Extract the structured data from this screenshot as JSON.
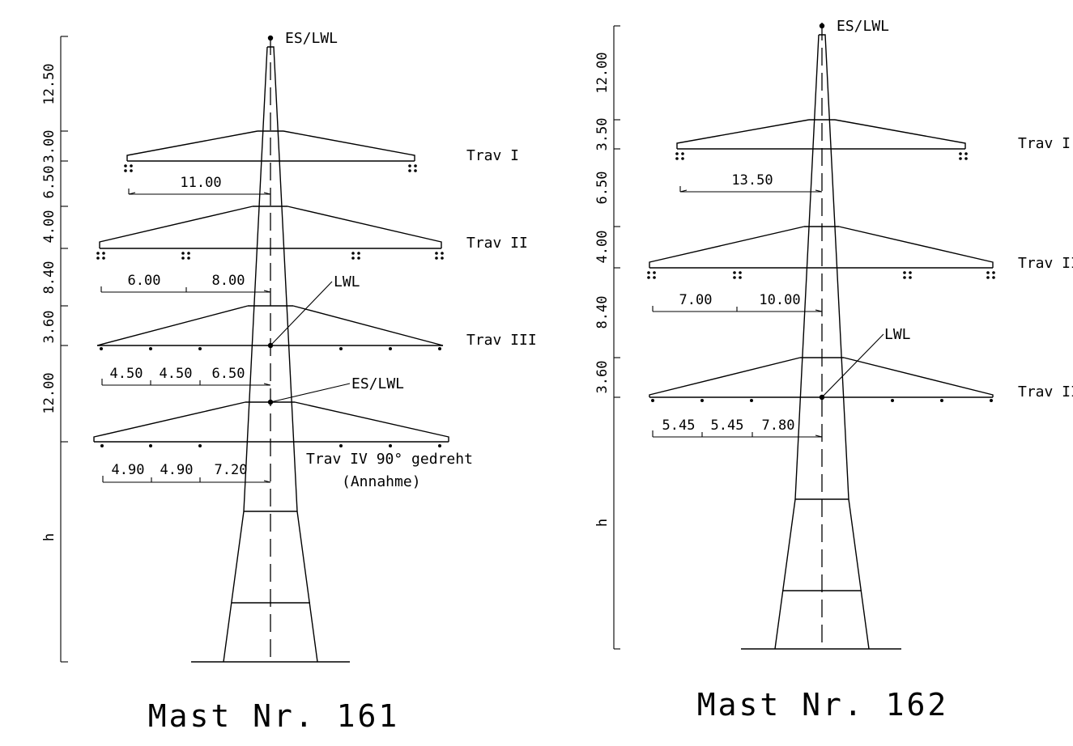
{
  "masts": [
    {
      "title": "Mast Nr. 161",
      "top_label": "ES/LWL",
      "height_dims": [
        "12.50",
        "3.00",
        "6.50",
        "4.00",
        "8.40",
        "3.60",
        "12.00",
        "h"
      ],
      "crossarms": [
        {
          "label": "Trav I"
        },
        {
          "label": "Trav II"
        },
        {
          "label": "Trav III"
        },
        {
          "label": "Trav IV 90° gedreht",
          "note": "(Annahme)"
        }
      ],
      "span_dims": {
        "trav1": [
          "11.00"
        ],
        "trav2": [
          "6.00",
          "8.00"
        ],
        "trav3": [
          "4.50",
          "4.50",
          "6.50"
        ],
        "trav4": [
          "4.90",
          "4.90",
          "7.20"
        ]
      },
      "callouts": [
        "LWL",
        "ES/LWL"
      ]
    },
    {
      "title": "Mast Nr. 162",
      "top_label": "ES/LWL",
      "height_dims": [
        "12.00",
        "3.50",
        "6.50",
        "4.00",
        "8.40",
        "3.60",
        "h"
      ],
      "crossarms": [
        {
          "label": "Trav I"
        },
        {
          "label": "Trav II"
        },
        {
          "label": "Trav III"
        }
      ],
      "span_dims": {
        "trav1": [
          "13.50"
        ],
        "trav2": [
          "7.00",
          "10.00"
        ],
        "trav3": [
          "5.45",
          "5.45",
          "7.80"
        ]
      },
      "callouts": [
        "LWL"
      ]
    }
  ]
}
